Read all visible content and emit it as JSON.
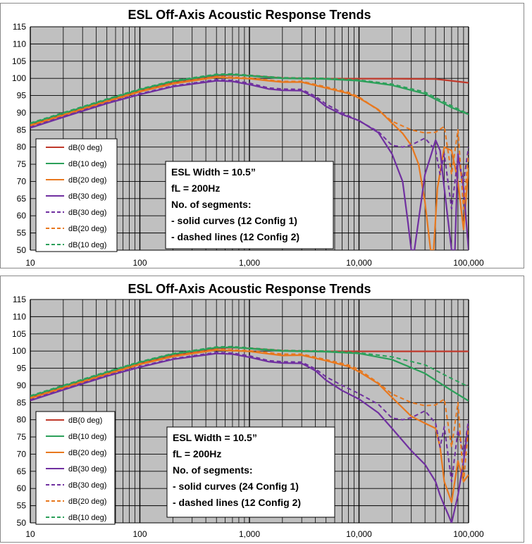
{
  "chart_data": [
    {
      "type": "line",
      "title": "ESL Off-Axis Acoustic Response Trends",
      "xlabel": "",
      "ylabel": "",
      "x_scale": "log",
      "xlim": [
        10,
        100000
      ],
      "ylim": [
        50,
        115
      ],
      "x_ticks": [
        10,
        100,
        1000,
        10000,
        100000
      ],
      "x_tick_labels": [
        "10",
        "100",
        "1,000",
        "10,000",
        "100,000"
      ],
      "y_ticks": [
        50,
        55,
        60,
        65,
        70,
        75,
        80,
        85,
        90,
        95,
        100,
        105,
        110,
        115
      ],
      "grid": true,
      "legend_placement": "bottom-left",
      "series": [
        {
          "name": "dB(0 deg)",
          "color": "#c0392b",
          "dash": "solid",
          "x": [
            10,
            20,
            50,
            100,
            200,
            500,
            700,
            1000,
            2000,
            5000,
            10000,
            20000,
            50000,
            100000
          ],
          "y": [
            86.5,
            89.5,
            93.5,
            96.4,
            98.8,
            100.8,
            101.0,
            100.8,
            100.1,
            99.9,
            99.9,
            99.9,
            99.8,
            98.7
          ]
        },
        {
          "name": "dB(10 deg)",
          "color": "#2ca05a",
          "dash": "solid",
          "x": [
            10,
            20,
            50,
            100,
            200,
            500,
            700,
            1000,
            2000,
            5000,
            10000,
            20000,
            40000,
            70000,
            100000
          ],
          "y": [
            86.8,
            89.8,
            93.8,
            96.7,
            99.1,
            101.0,
            101.1,
            100.7,
            100.0,
            99.8,
            99.3,
            98.0,
            95.5,
            91.5,
            89.5
          ]
        },
        {
          "name": "dB(20 deg)",
          "color": "#e8781e",
          "dash": "solid",
          "x": [
            10,
            20,
            50,
            100,
            200,
            500,
            1000,
            1500,
            2000,
            3000,
            5000,
            8000,
            10000,
            15000,
            20000,
            25000,
            30000,
            35000,
            40000,
            45000,
            48000,
            52000,
            60000,
            70000,
            80000,
            90000,
            100000
          ],
          "y": [
            86.2,
            89.2,
            93.2,
            96.1,
            98.4,
            100.3,
            99.9,
            99.3,
            98.9,
            98.9,
            97.2,
            95.6,
            94.3,
            90.9,
            87.0,
            84.0,
            80.5,
            75.0,
            64.0,
            50.0,
            50.0,
            68.0,
            80.0,
            79.0,
            70.0,
            56.0,
            74.0
          ]
        },
        {
          "name": "dB(30 deg)",
          "color": "#7030a0",
          "dash": "solid",
          "x": [
            10,
            20,
            50,
            100,
            200,
            500,
            700,
            1000,
            1500,
            2000,
            3000,
            4000,
            5000,
            7000,
            10000,
            15000,
            20000,
            25000,
            28000,
            30000,
            32000,
            40000,
            50000,
            55000,
            60000,
            70000,
            75000,
            80000,
            90000,
            100000
          ],
          "y": [
            85.6,
            88.7,
            92.7,
            95.3,
            97.6,
            99.3,
            99.1,
            98.2,
            96.9,
            96.5,
            96.4,
            94.3,
            91.8,
            89.5,
            87.7,
            84.2,
            78.0,
            70.0,
            58.0,
            50.0,
            50.0,
            72.0,
            82.0,
            79.0,
            68.0,
            50.0,
            50.0,
            78.0,
            68.0,
            50.0
          ]
        },
        {
          "name": "dB(30 deg)",
          "color": "#7030a0",
          "dash": "dashed",
          "x": [
            10,
            20,
            50,
            100,
            200,
            500,
            700,
            1000,
            1500,
            2000,
            3000,
            4000,
            5000,
            7000,
            10000,
            15000,
            20000,
            25000,
            30000,
            40000,
            50000,
            55000,
            60000,
            70000,
            80000,
            90000,
            100000
          ],
          "y": [
            85.8,
            88.9,
            92.9,
            95.5,
            97.8,
            99.6,
            99.4,
            98.6,
            97.2,
            96.9,
            96.8,
            94.8,
            92.5,
            90.0,
            87.6,
            84.5,
            80.5,
            80.0,
            80.6,
            82.6,
            79.0,
            72.0,
            78.0,
            62.0,
            77.0,
            70.0,
            80.0
          ]
        },
        {
          "name": "dB(20 deg)",
          "color": "#e8781e",
          "dash": "dashed",
          "x": [
            10,
            20,
            50,
            100,
            200,
            500,
            1000,
            2000,
            3000,
            5000,
            8000,
            10000,
            15000,
            20000,
            30000,
            40000,
            50000,
            60000,
            70000,
            80000,
            90000,
            100000
          ],
          "y": [
            86.4,
            89.4,
            93.4,
            96.3,
            98.6,
            100.5,
            100.1,
            99.1,
            99.1,
            97.5,
            95.9,
            94.6,
            90.7,
            87.5,
            85.0,
            84.1,
            84.3,
            86.0,
            72.0,
            85.0,
            62.0,
            78.0
          ]
        },
        {
          "name": "dB(10 deg)",
          "color": "#2ca05a",
          "dash": "dashed",
          "x": [
            10,
            20,
            50,
            100,
            200,
            500,
            700,
            1000,
            2000,
            5000,
            10000,
            20000,
            40000,
            70000,
            100000
          ],
          "y": [
            87.0,
            90.0,
            94.0,
            96.9,
            99.3,
            101.2,
            101.3,
            100.9,
            100.2,
            100.0,
            99.5,
            98.3,
            96.0,
            92.0,
            89.6
          ]
        }
      ],
      "annotation": {
        "lines": [
          "ESL Width = 10.5”",
          "fL = 200Hz",
          "No. of segments:",
          " - solid curves (12 Config 1)",
          " - dashed lines (12 Config 2)"
        ]
      }
    },
    {
      "type": "line",
      "title": "ESL Off-Axis Acoustic Response Trends",
      "xlabel": "",
      "ylabel": "",
      "x_scale": "log",
      "xlim": [
        10,
        100000
      ],
      "ylim": [
        50,
        115
      ],
      "x_ticks": [
        10,
        100,
        1000,
        10000,
        100000
      ],
      "x_tick_labels": [
        "10",
        "100",
        "1,000",
        "10,000",
        "100,000"
      ],
      "y_ticks": [
        50,
        55,
        60,
        65,
        70,
        75,
        80,
        85,
        90,
        95,
        100,
        105,
        110,
        115
      ],
      "grid": true,
      "legend_placement": "bottom-left",
      "series": [
        {
          "name": "dB(0 deg)",
          "color": "#c0392b",
          "dash": "solid",
          "x": [
            10,
            20,
            50,
            100,
            200,
            500,
            700,
            1000,
            2000,
            5000,
            10000,
            20000,
            50000,
            100000
          ],
          "y": [
            86.5,
            89.5,
            93.5,
            96.4,
            98.8,
            100.8,
            101.0,
            100.8,
            100.1,
            99.9,
            99.9,
            99.9,
            99.9,
            99.9
          ]
        },
        {
          "name": "dB(10 deg)",
          "color": "#2ca05a",
          "dash": "solid",
          "x": [
            10,
            20,
            50,
            100,
            200,
            500,
            700,
            1000,
            2000,
            5000,
            10000,
            20000,
            40000,
            70000,
            100000
          ],
          "y": [
            86.8,
            89.8,
            93.8,
            96.7,
            99.1,
            101.0,
            101.1,
            100.7,
            100.0,
            99.8,
            99.3,
            97.5,
            93.5,
            88.5,
            85.5
          ]
        },
        {
          "name": "dB(20 deg)",
          "color": "#e8781e",
          "dash": "solid",
          "x": [
            10,
            20,
            50,
            100,
            200,
            500,
            1000,
            1500,
            2000,
            3000,
            5000,
            8000,
            10000,
            15000,
            20000,
            30000,
            40000,
            50000,
            55000,
            60000,
            70000,
            80000,
            90000,
            100000
          ],
          "y": [
            86.2,
            89.2,
            93.2,
            96.1,
            98.4,
            100.3,
            99.9,
            99.2,
            98.7,
            98.8,
            97.2,
            95.5,
            94.0,
            90.5,
            86.5,
            81.0,
            79.0,
            77.5,
            72.0,
            62.0,
            56.0,
            68.0,
            62.0,
            64.0
          ]
        },
        {
          "name": "dB(30 deg)",
          "color": "#7030a0",
          "dash": "solid",
          "x": [
            10,
            20,
            50,
            100,
            200,
            500,
            700,
            1000,
            1500,
            2000,
            3000,
            4000,
            5000,
            7000,
            10000,
            15000,
            20000,
            30000,
            40000,
            50000,
            55000,
            60000,
            65000,
            70000,
            80000,
            90000,
            100000
          ],
          "y": [
            85.6,
            88.7,
            92.7,
            95.3,
            97.6,
            99.3,
            99.1,
            98.2,
            96.9,
            96.5,
            96.4,
            94.3,
            91.5,
            88.5,
            86.0,
            82.0,
            77.5,
            71.0,
            67.0,
            62.0,
            58.0,
            55.0,
            52.5,
            50.0,
            58.0,
            68.0,
            79.0
          ]
        },
        {
          "name": "dB(30 deg)",
          "color": "#7030a0",
          "dash": "dashed",
          "x": [
            10,
            20,
            50,
            100,
            200,
            500,
            700,
            1000,
            1500,
            2000,
            3000,
            4000,
            5000,
            7000,
            10000,
            15000,
            20000,
            25000,
            30000,
            40000,
            50000,
            55000,
            60000,
            70000,
            80000,
            90000,
            100000
          ],
          "y": [
            85.8,
            88.9,
            92.9,
            95.5,
            97.8,
            99.6,
            99.4,
            98.6,
            97.2,
            96.9,
            96.8,
            94.8,
            92.5,
            90.0,
            87.6,
            84.5,
            80.5,
            80.0,
            80.6,
            82.6,
            79.0,
            72.0,
            78.0,
            62.0,
            77.0,
            70.0,
            80.0
          ]
        },
        {
          "name": "dB(20 deg)",
          "color": "#e8781e",
          "dash": "dashed",
          "x": [
            10,
            20,
            50,
            100,
            200,
            500,
            1000,
            2000,
            3000,
            5000,
            8000,
            10000,
            15000,
            20000,
            30000,
            40000,
            50000,
            60000,
            70000,
            80000,
            90000,
            100000
          ],
          "y": [
            86.4,
            89.4,
            93.4,
            96.3,
            98.6,
            100.5,
            100.1,
            99.1,
            99.1,
            97.5,
            95.9,
            94.6,
            90.7,
            87.5,
            85.0,
            84.1,
            84.3,
            86.0,
            72.0,
            85.0,
            62.0,
            78.0
          ]
        },
        {
          "name": "dB(10 deg)",
          "color": "#2ca05a",
          "dash": "dashed",
          "x": [
            10,
            20,
            50,
            100,
            200,
            500,
            700,
            1000,
            2000,
            5000,
            10000,
            20000,
            40000,
            70000,
            100000
          ],
          "y": [
            87.0,
            90.0,
            94.0,
            96.9,
            99.3,
            101.2,
            101.3,
            100.9,
            100.2,
            100.0,
            99.5,
            98.3,
            96.0,
            92.0,
            89.6
          ]
        }
      ],
      "annotation": {
        "lines": [
          "ESL Width = 10.5”",
          "fL = 200Hz",
          "No. of segments:",
          " - solid curves (24 Config 1)",
          " - dashed lines (12 Config 2)"
        ]
      }
    }
  ]
}
